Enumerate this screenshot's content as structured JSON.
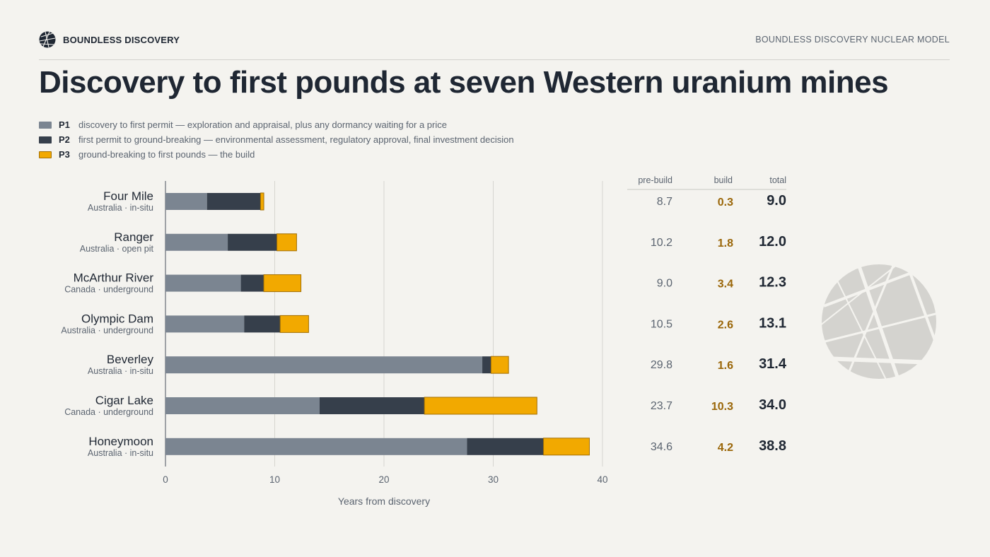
{
  "header": {
    "brand": "BOUNDLESS DISCOVERY",
    "model": "BOUNDLESS DISCOVERY NUCLEAR MODEL"
  },
  "title": "Discovery to first pounds at seven Western uranium mines",
  "legend": [
    {
      "key": "P1",
      "desc": "discovery to first permit — exploration and appraisal, plus any dormancy waiting for a price",
      "color": "#7b8591"
    },
    {
      "key": "P2",
      "desc": "first permit to ground-breaking — environmental assessment, regulatory approval, final investment decision",
      "color": "#363f4b"
    },
    {
      "key": "P3",
      "desc": "ground-breaking to first pounds — the build",
      "color": "#f2a900"
    }
  ],
  "colors": {
    "p1": "#7b8591",
    "p2": "#363f4b",
    "p3": "#f2a900",
    "p3_stroke": "#a26f05",
    "build_text": "#9a6608",
    "grid": "#d6d5d0"
  },
  "table_headers": {
    "pre": "pre-build",
    "build": "build",
    "total": "total"
  },
  "chart_data": {
    "type": "bar",
    "orientation": "horizontal",
    "stacked": true,
    "xlabel": "Years from discovery",
    "xlim": [
      0,
      40
    ],
    "xticks": [
      0,
      10,
      20,
      30,
      40
    ],
    "grid": true,
    "categories": [
      "Four Mile",
      "Ranger",
      "McArthur River",
      "Olympic Dam",
      "Beverley",
      "Cigar Lake",
      "Honeymoon"
    ],
    "subtitles": [
      "Australia · in-situ",
      "Australia · open pit",
      "Canada · underground",
      "Australia · underground",
      "Australia · in-situ",
      "Canada · underground",
      "Australia · in-situ"
    ],
    "series": [
      {
        "name": "P1",
        "values": [
          3.8,
          5.7,
          6.9,
          7.2,
          29.0,
          14.1,
          27.6
        ]
      },
      {
        "name": "P2",
        "values": [
          4.9,
          4.5,
          2.1,
          3.3,
          0.8,
          9.6,
          7.0
        ]
      },
      {
        "name": "P3",
        "values": [
          0.3,
          1.8,
          3.4,
          2.6,
          1.6,
          10.3,
          4.2
        ]
      }
    ],
    "table": {
      "pre_build": [
        "8.7",
        "10.2",
        "9.0",
        "10.5",
        "29.8",
        "23.7",
        "34.6"
      ],
      "build": [
        "0.3",
        "1.8",
        "3.4",
        "2.6",
        "1.6",
        "10.3",
        "4.2"
      ],
      "total": [
        "9.0",
        "12.0",
        "12.3",
        "13.1",
        "31.4",
        "34.0",
        "38.8"
      ]
    }
  }
}
